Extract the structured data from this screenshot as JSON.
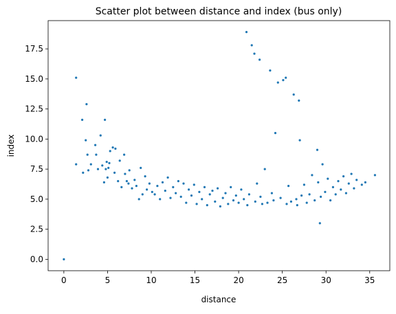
{
  "chart_data": {
    "type": "scatter",
    "title": "Scatter plot between distance and index (bus only)",
    "xlabel": "distance",
    "ylabel": "index",
    "xlim": [
      -1.8,
      37.3
    ],
    "ylim": [
      -0.95,
      19.85
    ],
    "xticks": [
      0,
      5,
      10,
      15,
      20,
      25,
      30,
      35
    ],
    "xtick_labels": [
      "0",
      "5",
      "10",
      "15",
      "20",
      "25",
      "30",
      "35"
    ],
    "yticks": [
      0.0,
      2.5,
      5.0,
      7.5,
      10.0,
      12.5,
      15.0,
      17.5
    ],
    "ytick_labels": [
      "0.0",
      "2.5",
      "5.0",
      "7.5",
      "10.0",
      "12.5",
      "15.0",
      "17.5"
    ],
    "grid": false,
    "marker_color": "#1f77b4",
    "series": [
      {
        "x": [
          0.0,
          1.4,
          1.4,
          2.1,
          2.2,
          2.5,
          2.6,
          2.7,
          2.8,
          3.1,
          3.6,
          3.7,
          3.9,
          4.2,
          4.4,
          4.6,
          4.7,
          4.8,
          4.9,
          5.0,
          5.1,
          5.2,
          5.3,
          5.6,
          5.8,
          5.9,
          6.2,
          6.4,
          6.6,
          6.9,
          7.0,
          7.2,
          7.4,
          7.5,
          7.8,
          8.1,
          8.3,
          8.6,
          8.8,
          9.0,
          9.3,
          9.5,
          9.8,
          10.1,
          10.4,
          10.7,
          11.0,
          11.3,
          11.6,
          11.9,
          12.2,
          12.5,
          12.8,
          13.1,
          13.4,
          13.7,
          14.0,
          14.3,
          14.6,
          14.9,
          15.2,
          15.5,
          15.8,
          16.1,
          16.4,
          16.7,
          17.0,
          17.3,
          17.6,
          17.9,
          18.2,
          18.5,
          18.8,
          19.1,
          19.4,
          19.7,
          20.0,
          20.3,
          20.6,
          20.9,
          21.0,
          21.2,
          21.5,
          21.8,
          21.9,
          22.1,
          22.4,
          22.5,
          22.7,
          23.0,
          23.3,
          23.6,
          23.8,
          24.0,
          24.2,
          24.5,
          24.8,
          25.1,
          25.4,
          25.5,
          25.7,
          26.0,
          26.3,
          26.6,
          26.7,
          26.9,
          27.0,
          27.2,
          27.5,
          27.8,
          28.1,
          28.4,
          28.7,
          29.0,
          29.1,
          29.3,
          29.4,
          29.6,
          29.9,
          30.2,
          30.5,
          30.8,
          31.1,
          31.4,
          31.7,
          32.0,
          32.3,
          32.6,
          32.9,
          33.2,
          33.5,
          34.1,
          34.5,
          35.6
        ],
        "y": [
          0.0,
          15.1,
          7.9,
          11.6,
          7.2,
          9.9,
          12.9,
          8.7,
          7.4,
          7.9,
          9.5,
          8.7,
          7.5,
          10.3,
          7.8,
          6.4,
          11.6,
          7.5,
          8.1,
          6.8,
          7.6,
          8.0,
          9.0,
          9.3,
          7.2,
          9.2,
          6.5,
          8.2,
          6.0,
          8.7,
          7.1,
          6.5,
          6.3,
          7.4,
          5.9,
          6.6,
          6.1,
          5.0,
          7.6,
          5.4,
          6.9,
          5.8,
          6.3,
          5.6,
          5.4,
          6.1,
          5.0,
          6.4,
          5.7,
          6.8,
          5.1,
          6.0,
          5.5,
          6.5,
          5.2,
          6.3,
          4.7,
          5.8,
          5.3,
          6.2,
          4.6,
          5.6,
          5.0,
          6.0,
          4.5,
          5.4,
          5.7,
          4.8,
          5.9,
          4.4,
          5.1,
          5.5,
          4.6,
          6.0,
          4.9,
          5.3,
          4.7,
          5.8,
          5.0,
          18.9,
          4.5,
          5.4,
          17.8,
          17.1,
          4.8,
          6.3,
          16.6,
          5.2,
          4.6,
          7.5,
          4.7,
          15.7,
          5.5,
          4.9,
          10.5,
          14.7,
          5.1,
          14.9,
          15.1,
          4.6,
          6.1,
          4.8,
          13.7,
          5.0,
          4.5,
          13.2,
          9.9,
          5.3,
          6.2,
          4.7,
          5.4,
          7.0,
          4.9,
          9.1,
          6.4,
          3.0,
          5.2,
          7.9,
          5.6,
          6.7,
          4.9,
          6.0,
          5.4,
          6.5,
          5.8,
          6.9,
          5.5,
          6.3,
          7.1,
          5.9,
          6.6,
          6.2,
          6.4,
          7.0
        ]
      }
    ]
  }
}
